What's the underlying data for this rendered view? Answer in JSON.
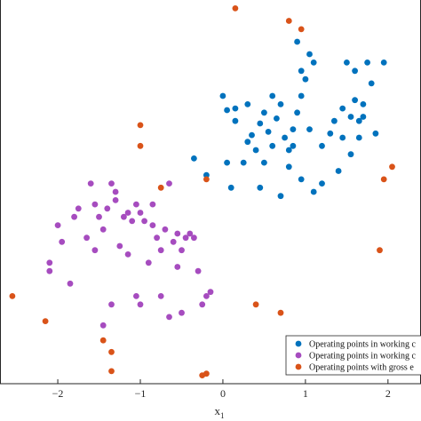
{
  "chart_data": {
    "type": "scatter",
    "xlabel": "x",
    "xlabel_subscript": "1",
    "xlim": [
      -2.7,
      2.4
    ],
    "ylim": [
      -1.9,
      2.7
    ],
    "x_ticks": [
      -2,
      -1,
      0,
      1,
      2
    ],
    "x_tick_labels": [
      "−2",
      "−1",
      "0",
      "1",
      "2"
    ],
    "grid": false,
    "legend_position": "bottom-right",
    "series": [
      {
        "name": "Operating points in working c",
        "color": "#0072BD",
        "points": [
          [
            0.0,
            1.55
          ],
          [
            0.05,
            1.38
          ],
          [
            0.15,
            1.25
          ],
          [
            0.3,
            1.45
          ],
          [
            0.35,
            1.08
          ],
          [
            0.45,
            1.22
          ],
          [
            0.5,
            1.35
          ],
          [
            0.55,
            1.12
          ],
          [
            0.6,
            0.95
          ],
          [
            0.65,
            1.28
          ],
          [
            0.7,
            1.45
          ],
          [
            0.75,
            1.05
          ],
          [
            0.8,
            0.9
          ],
          [
            0.85,
            1.15
          ],
          [
            0.9,
            1.35
          ],
          [
            0.95,
            1.55
          ],
          [
            1.0,
            1.75
          ],
          [
            1.05,
            2.05
          ],
          [
            1.1,
            1.95
          ],
          [
            0.9,
            2.2
          ],
          [
            0.95,
            1.85
          ],
          [
            0.85,
            0.95
          ],
          [
            0.8,
            0.7
          ],
          [
            1.05,
            1.15
          ],
          [
            1.2,
            0.95
          ],
          [
            1.35,
            1.25
          ],
          [
            1.45,
            1.05
          ],
          [
            1.55,
            1.3
          ],
          [
            1.6,
            1.5
          ],
          [
            1.65,
            1.25
          ],
          [
            1.5,
            1.95
          ],
          [
            1.6,
            1.85
          ],
          [
            1.75,
            1.95
          ],
          [
            1.8,
            1.7
          ],
          [
            1.65,
            1.05
          ],
          [
            1.55,
            0.85
          ],
          [
            1.4,
            0.65
          ],
          [
            1.2,
            0.5
          ],
          [
            1.1,
            0.4
          ],
          [
            0.95,
            0.55
          ],
          [
            0.7,
            0.35
          ],
          [
            0.5,
            0.75
          ],
          [
            0.4,
            0.9
          ],
          [
            0.25,
            0.75
          ],
          [
            0.1,
            0.45
          ],
          [
            -0.2,
            0.6
          ],
          [
            -0.35,
            0.8
          ],
          [
            0.05,
            0.75
          ],
          [
            0.3,
            1.0
          ],
          [
            0.45,
            0.45
          ],
          [
            0.15,
            1.4
          ],
          [
            0.6,
            1.55
          ],
          [
            1.3,
            1.1
          ],
          [
            1.45,
            1.4
          ],
          [
            1.7,
            1.45
          ],
          [
            1.85,
            1.1
          ],
          [
            1.95,
            1.95
          ],
          [
            1.7,
            1.3
          ]
        ]
      },
      {
        "name": "Operating points in working c",
        "color": "#A64CBF",
        "points": [
          [
            -2.1,
            -0.45
          ],
          [
            -2.1,
            -0.55
          ],
          [
            -2.0,
            0.0
          ],
          [
            -1.95,
            -0.2
          ],
          [
            -1.85,
            -0.7
          ],
          [
            -1.75,
            0.2
          ],
          [
            -1.65,
            -0.15
          ],
          [
            -1.6,
            0.5
          ],
          [
            -1.55,
            -0.3
          ],
          [
            -1.5,
            0.1
          ],
          [
            -1.45,
            -0.05
          ],
          [
            -1.4,
            0.2
          ],
          [
            -1.35,
            0.5
          ],
          [
            -1.3,
            0.4
          ],
          [
            -1.3,
            0.3
          ],
          [
            -1.25,
            -0.25
          ],
          [
            -1.2,
            0.1
          ],
          [
            -1.15,
            -0.35
          ],
          [
            -1.1,
            0.05
          ],
          [
            -1.05,
            0.25
          ],
          [
            -1.0,
            0.15
          ],
          [
            -0.95,
            0.05
          ],
          [
            -0.9,
            -0.45
          ],
          [
            -0.85,
            0.25
          ],
          [
            -0.8,
            -0.15
          ],
          [
            -0.75,
            -0.3
          ],
          [
            -0.7,
            -0.05
          ],
          [
            -0.65,
            0.5
          ],
          [
            -0.6,
            -0.2
          ],
          [
            -0.55,
            -0.5
          ],
          [
            -0.5,
            -0.3
          ],
          [
            -0.45,
            -0.15
          ],
          [
            -0.4,
            -0.1
          ],
          [
            -0.35,
            -0.15
          ],
          [
            -0.3,
            -0.55
          ],
          [
            -0.25,
            -0.95
          ],
          [
            -0.2,
            -0.85
          ],
          [
            -0.15,
            -0.8
          ],
          [
            -0.65,
            -1.1
          ],
          [
            -0.5,
            -1.05
          ],
          [
            -1.45,
            -1.2
          ],
          [
            -1.35,
            -0.95
          ],
          [
            -1.0,
            -0.95
          ],
          [
            -1.05,
            -0.85
          ],
          [
            -0.75,
            -0.85
          ],
          [
            -1.8,
            0.1
          ],
          [
            -1.55,
            0.25
          ],
          [
            -0.85,
            0.0
          ],
          [
            -1.15,
            0.15
          ],
          [
            -0.55,
            -0.1
          ]
        ]
      },
      {
        "name": "Operating points with gross e",
        "color": "#D95319",
        "points": [
          [
            0.15,
            2.6
          ],
          [
            0.8,
            2.45
          ],
          [
            0.95,
            2.35
          ],
          [
            -1.0,
            1.2
          ],
          [
            -1.0,
            0.95
          ],
          [
            -0.2,
            0.55
          ],
          [
            -2.55,
            -0.85
          ],
          [
            -2.15,
            -1.15
          ],
          [
            -1.45,
            -1.38
          ],
          [
            -1.35,
            -1.52
          ],
          [
            -1.35,
            -1.75
          ],
          [
            -0.25,
            -1.8
          ],
          [
            -0.2,
            -1.78
          ],
          [
            0.4,
            -0.95
          ],
          [
            0.7,
            -1.05
          ],
          [
            1.9,
            -0.3
          ],
          [
            1.95,
            0.55
          ],
          [
            2.05,
            0.7
          ],
          [
            -0.75,
            0.45
          ]
        ]
      }
    ]
  }
}
